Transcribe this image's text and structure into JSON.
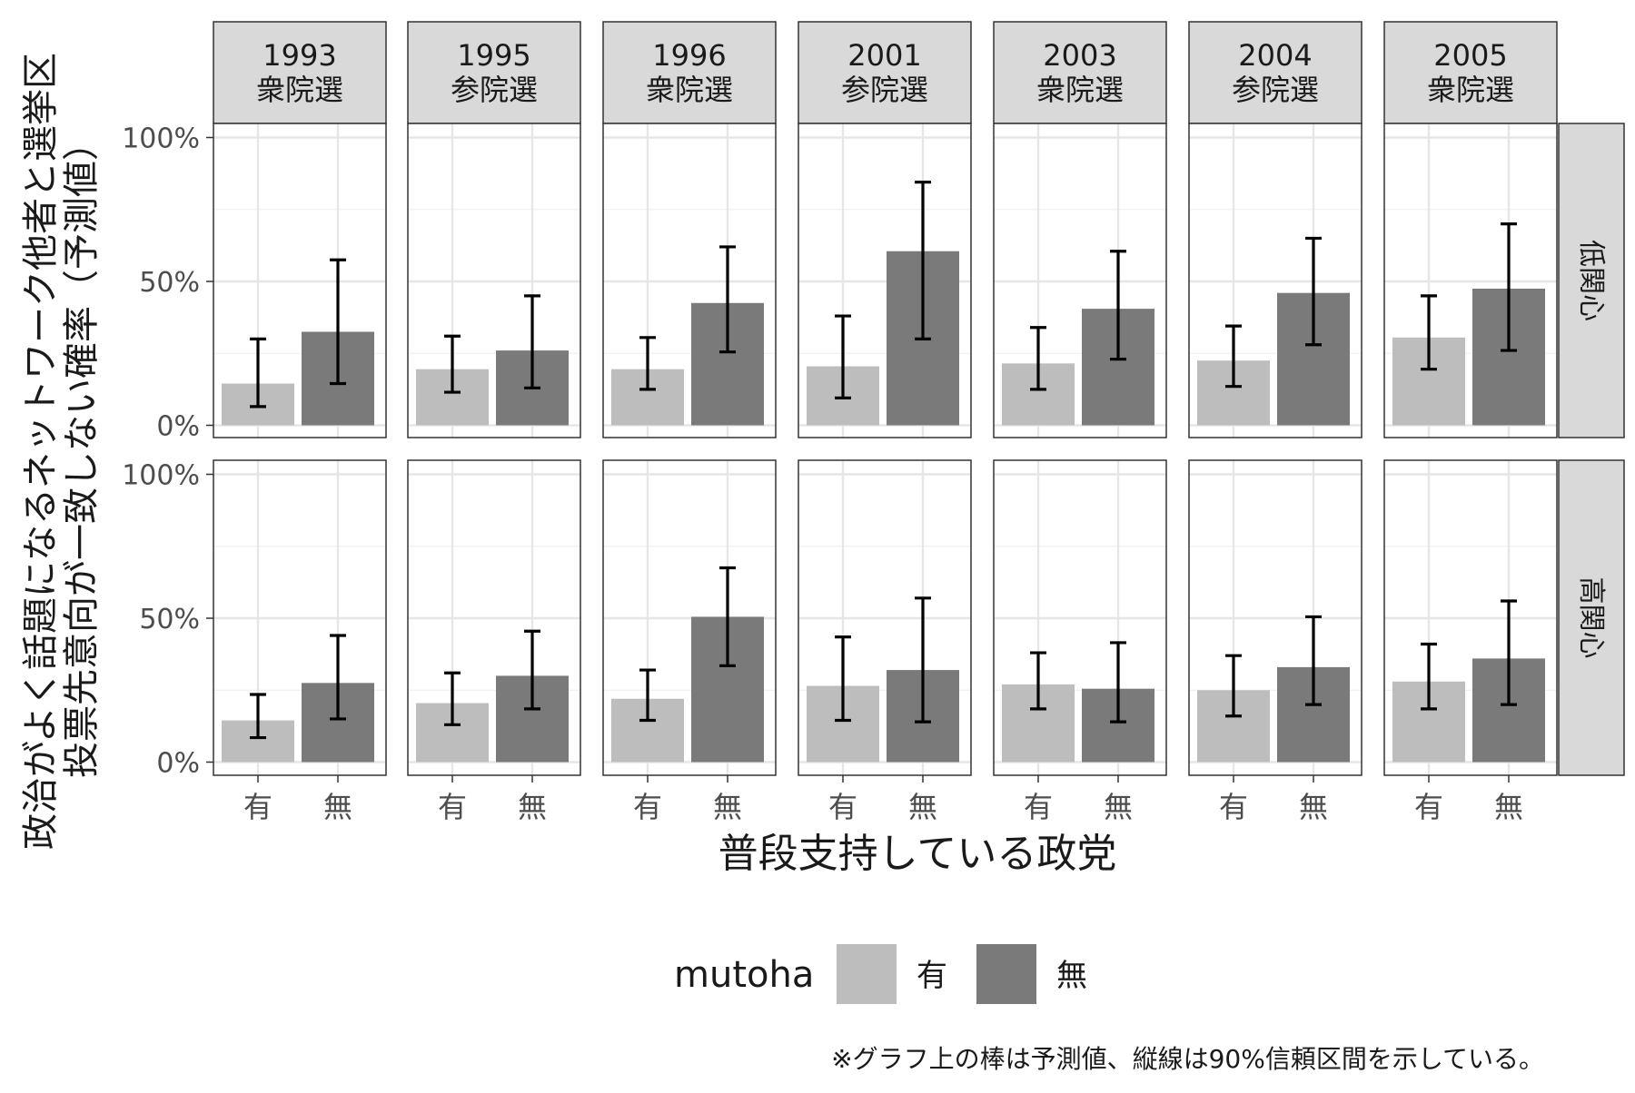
{
  "chart_data": {
    "type": "bar",
    "facet_columns": [
      {
        "year": "1993",
        "election": "衆院選"
      },
      {
        "year": "1995",
        "election": "参院選"
      },
      {
        "year": "1996",
        "election": "衆院選"
      },
      {
        "year": "2001",
        "election": "参院選"
      },
      {
        "year": "2003",
        "election": "衆院選"
      },
      {
        "year": "2004",
        "election": "参院選"
      },
      {
        "year": "2005",
        "election": "衆院選"
      }
    ],
    "facet_rows": [
      "低関心",
      "高関心"
    ],
    "categories": [
      "有",
      "無"
    ],
    "fill_colors": {
      "有": "#bdbdbd",
      "無": "#7a7a7a"
    },
    "ylim": [
      0,
      100
    ],
    "yticks": [
      0,
      50,
      100
    ],
    "ytick_labels": [
      "0%",
      "50%",
      "100%"
    ],
    "xlabel": "普段支持している政党",
    "ylabel_lines": [
      "政治がよく話題になるネットワーク他者と選挙区",
      "投票先意向が一致しない確率（予測値）"
    ],
    "legend": {
      "title": "mutoha",
      "position": "bottom",
      "items": [
        "有",
        "無"
      ]
    },
    "caption": "※グラフ上の棒は予測値、縦線は90%信頼区間を示している。",
    "grid": true,
    "panels": [
      [
        {
          "有": {
            "value": 14.5,
            "lo": 6.5,
            "hi": 30
          },
          "無": {
            "value": 32.5,
            "lo": 14.5,
            "hi": 57.5
          }
        },
        {
          "有": {
            "value": 19.5,
            "lo": 11.5,
            "hi": 31
          },
          "無": {
            "value": 26,
            "lo": 13,
            "hi": 45
          }
        },
        {
          "有": {
            "value": 19.5,
            "lo": 12.5,
            "hi": 30.5
          },
          "無": {
            "value": 42.5,
            "lo": 25.5,
            "hi": 62
          }
        },
        {
          "有": {
            "value": 20.5,
            "lo": 9.5,
            "hi": 38
          },
          "無": {
            "value": 60.5,
            "lo": 30,
            "hi": 84.5
          }
        },
        {
          "有": {
            "value": 21.5,
            "lo": 12.5,
            "hi": 34
          },
          "無": {
            "value": 40.5,
            "lo": 23,
            "hi": 60.5
          }
        },
        {
          "有": {
            "value": 22.5,
            "lo": 13.5,
            "hi": 34.5
          },
          "無": {
            "value": 46,
            "lo": 28,
            "hi": 65
          }
        },
        {
          "有": {
            "value": 30.5,
            "lo": 19.5,
            "hi": 45
          },
          "無": {
            "value": 47.5,
            "lo": 26,
            "hi": 70
          }
        }
      ],
      [
        {
          "有": {
            "value": 14.5,
            "lo": 8.5,
            "hi": 23.5
          },
          "無": {
            "value": 27.5,
            "lo": 15,
            "hi": 44
          }
        },
        {
          "有": {
            "value": 20.5,
            "lo": 13,
            "hi": 31
          },
          "無": {
            "value": 30,
            "lo": 18.5,
            "hi": 45.5
          }
        },
        {
          "有": {
            "value": 22,
            "lo": 14.5,
            "hi": 32
          },
          "無": {
            "value": 50.5,
            "lo": 33.5,
            "hi": 67.5
          }
        },
        {
          "有": {
            "value": 26.5,
            "lo": 14.5,
            "hi": 43.5
          },
          "無": {
            "value": 32,
            "lo": 14,
            "hi": 57
          }
        },
        {
          "有": {
            "value": 27,
            "lo": 18.5,
            "hi": 38
          },
          "無": {
            "value": 25.5,
            "lo": 14,
            "hi": 41.5
          }
        },
        {
          "有": {
            "value": 25,
            "lo": 16,
            "hi": 37
          },
          "無": {
            "value": 33,
            "lo": 20,
            "hi": 50.5
          }
        },
        {
          "有": {
            "value": 28,
            "lo": 18.5,
            "hi": 41
          },
          "無": {
            "value": 36,
            "lo": 20,
            "hi": 56
          }
        }
      ]
    ]
  }
}
